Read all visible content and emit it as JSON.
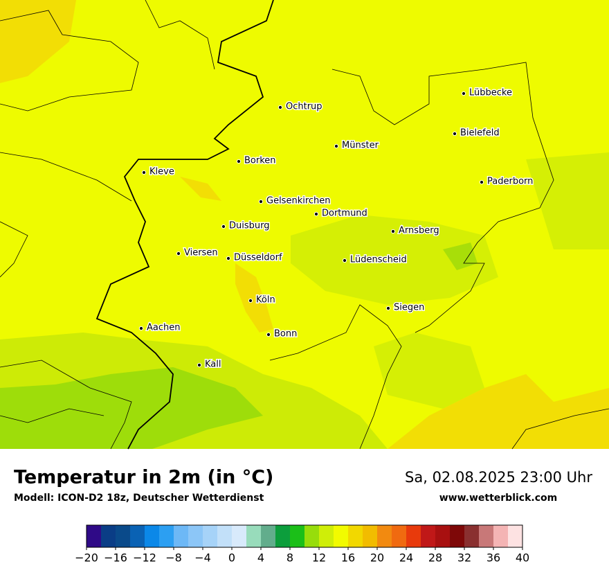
{
  "map": {
    "cities": [
      "Lübbecke",
      "Bielefeld",
      "Ochtrup",
      "Münster",
      "Paderborn",
      "Kleve",
      "Borken",
      "Gelsenkirchen",
      "Dortmund",
      "Duisburg",
      "Arnsberg",
      "Viersen",
      "Düsseldorf",
      "Lüdenscheid",
      "Köln",
      "Siegen",
      "Aachen",
      "Bonn",
      "Kall"
    ]
  },
  "legend": {
    "title": "Temperatur in 2m (in °C)",
    "model": "Modell: ICON-D2 18z, Deutscher Wetterdienst",
    "datetime": "Sa, 02.08.2025 23:00 Uhr",
    "website": "www.wetterblick.com",
    "colorbar": {
      "lim": [
        -20,
        40
      ],
      "ticks": [
        {
          "value": -20,
          "label": "−20"
        },
        {
          "value": -16,
          "label": "−16"
        },
        {
          "value": -12,
          "label": "−12"
        },
        {
          "value": -8,
          "label": "−8"
        },
        {
          "value": -4,
          "label": "−4"
        },
        0,
        4,
        8,
        12,
        16,
        20,
        24,
        28,
        32,
        36,
        40
      ],
      "colors": [
        "#2f0a87",
        "#0a3d86",
        "#0a4a8a",
        "#0a62b4",
        "#0b88e8",
        "#2c9ff2",
        "#6db8f6",
        "#8cc6f7",
        "#a6d3f8",
        "#c2e0f9",
        "#d8eafb",
        "#98dcbb",
        "#62ad8c",
        "#0c9e3c",
        "#1bbf18",
        "#97dd0b",
        "#cfee08",
        "#f2fb00",
        "#f2d800",
        "#f2bc00",
        "#f28a10",
        "#f06a10",
        "#e83a0c",
        "#c01818",
        "#a81010",
        "#7e0808",
        "#8a3030",
        "#c87878",
        "#f4b4b4",
        "#fde2e2"
      ]
    }
  }
}
